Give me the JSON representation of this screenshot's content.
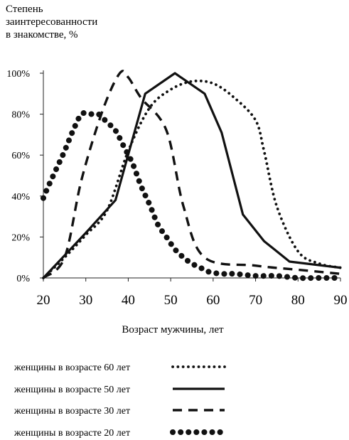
{
  "chart_data": {
    "type": "line",
    "title": "",
    "ylabel_lines": [
      "Степень",
      "заинтересованности",
      "в знакомстве, %"
    ],
    "xlabel": "Возраст мужчины, лет",
    "xlim": [
      20,
      90
    ],
    "ylim": [
      0,
      100
    ],
    "x_ticks": [
      "20",
      "30",
      "40",
      "50",
      "60",
      "70",
      "80",
      "90"
    ],
    "y_ticks": [
      "0%",
      "20%",
      "40%",
      "60%",
      "80%",
      "100%"
    ],
    "series": [
      {
        "name": "женщины в возрасте 60 лет",
        "style": "dotted-small",
        "x": [
          20,
          25,
          30,
          35,
          40,
          45,
          50,
          55,
          60,
          65,
          70,
          72,
          75,
          80,
          85,
          90
        ],
        "y": [
          0,
          10,
          21,
          33,
          62,
          83,
          92,
          96,
          95,
          88,
          77,
          62,
          35,
          13,
          7,
          5
        ]
      },
      {
        "name": "женщины в возрасте 50 лет",
        "style": "solid",
        "x": [
          20,
          25,
          30,
          37,
          44,
          51,
          58,
          62,
          67,
          72,
          78,
          90
        ],
        "y": [
          0,
          11,
          22,
          38,
          90,
          100,
          90,
          71,
          31,
          18,
          8,
          5
        ]
      },
      {
        "name": "женщины в возрасте 30 лет",
        "style": "dashed",
        "x": [
          20,
          25,
          29,
          34,
          38,
          40,
          43,
          49,
          53,
          58,
          70,
          80,
          90
        ],
        "y": [
          0,
          10,
          48,
          82,
          100,
          98,
          88,
          72,
          35,
          10,
          6,
          4,
          2
        ]
      },
      {
        "name": "женщины в возрасте 20 лет",
        "style": "dotted-large",
        "x": [
          20,
          21,
          23,
          25,
          27,
          29,
          31,
          33,
          35,
          37,
          39,
          41,
          43,
          45,
          47,
          49,
          51,
          53,
          55,
          57,
          59,
          62,
          65,
          70,
          75,
          80,
          85,
          90
        ],
        "y": [
          39,
          44,
          53,
          62,
          72,
          80,
          80,
          80,
          76,
          72,
          64,
          56,
          45,
          36,
          26,
          20,
          14,
          10,
          7,
          5,
          3,
          2,
          2,
          1,
          1,
          0,
          0,
          0
        ]
      }
    ]
  }
}
